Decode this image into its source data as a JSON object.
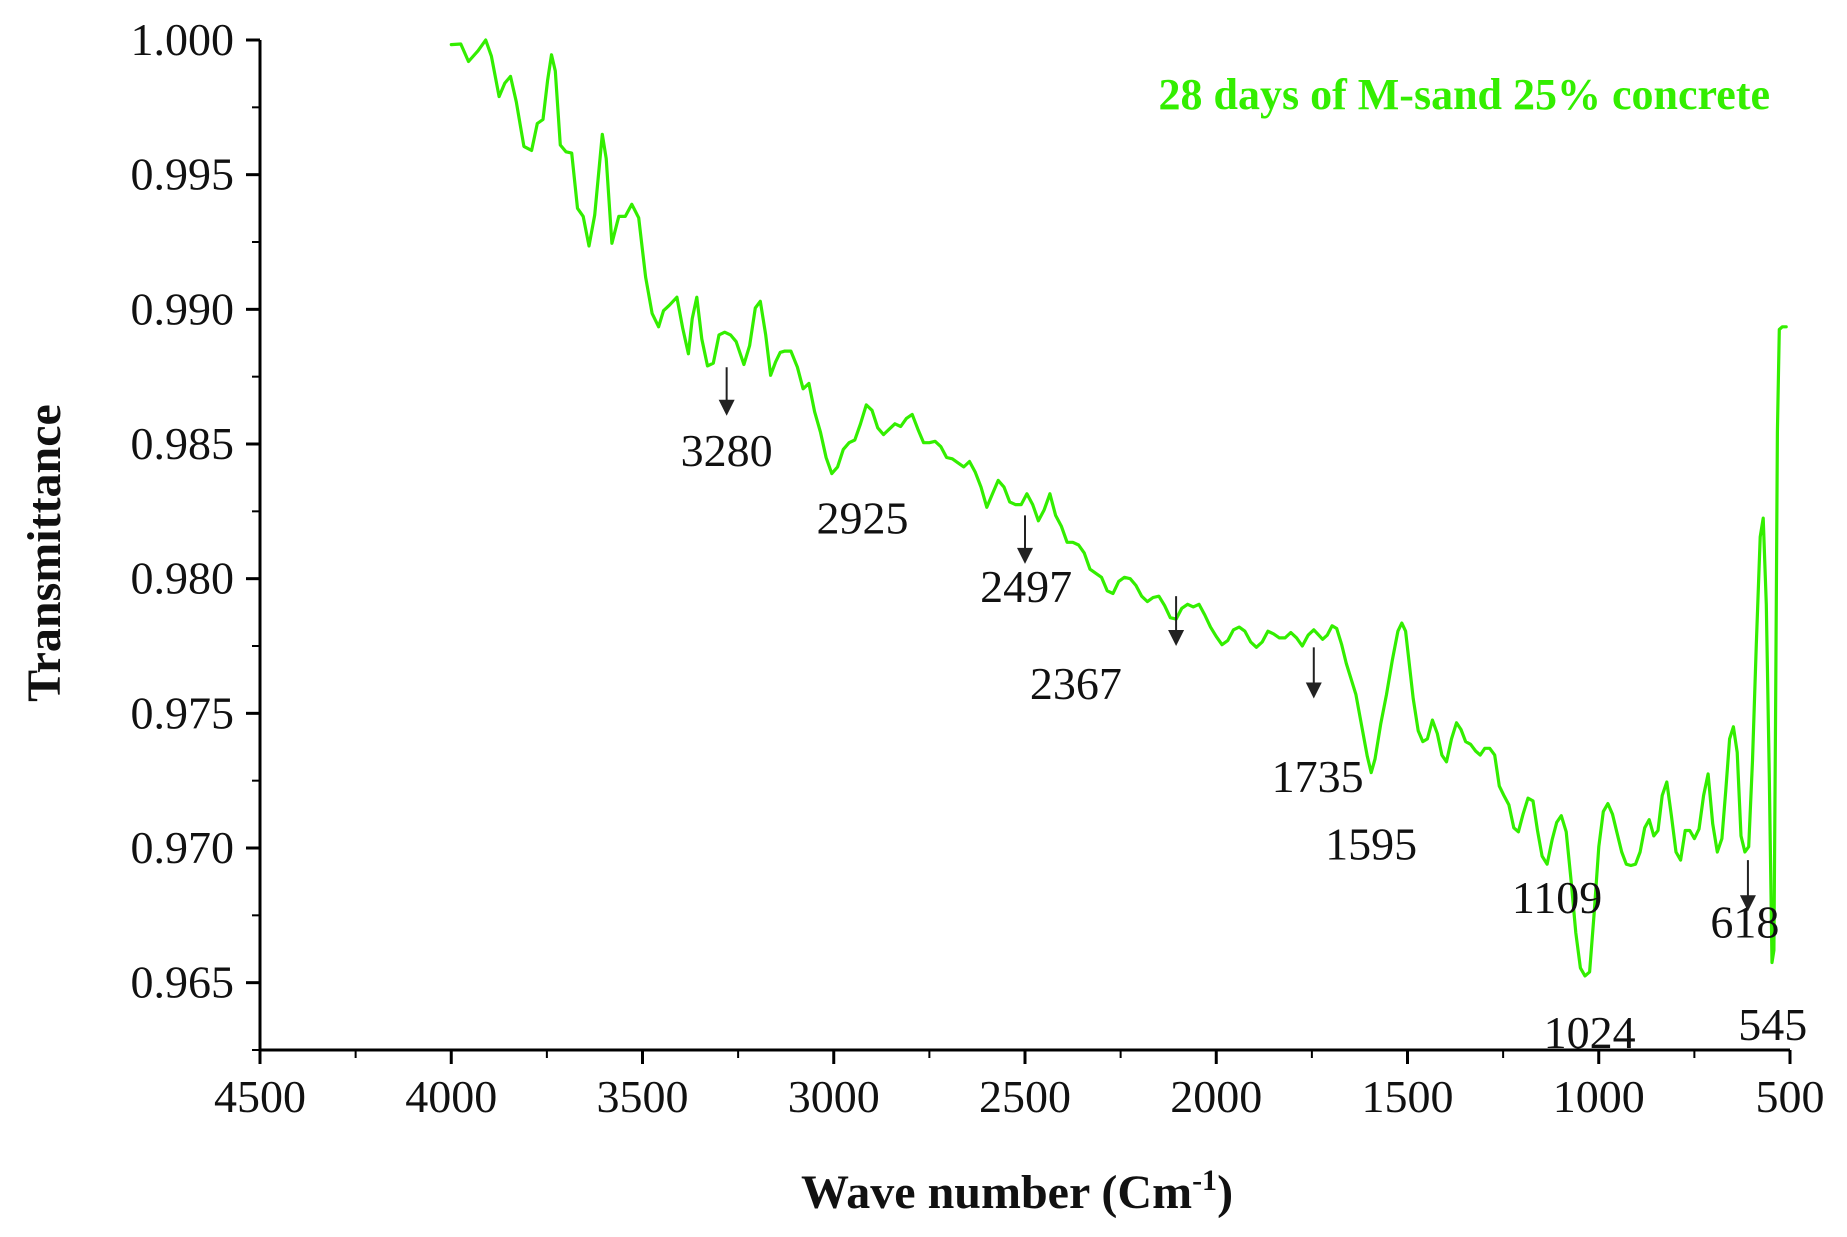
{
  "chart_data": {
    "type": "line",
    "title": "28 days of M-sand 25% concrete",
    "xlabel": "Wave number (Cm",
    "xlabel_superscript": "-1",
    "xlabel_close": ")",
    "ylabel": "Transmittance",
    "xlim": [
      4500,
      500
    ],
    "ylim": [
      0.9625,
      1.0
    ],
    "x_ticks": [
      4500,
      4000,
      3500,
      3000,
      2500,
      2000,
      1500,
      1000,
      500
    ],
    "x_tick_labels": [
      "4500",
      "4000",
      "3500",
      "3000",
      "2500",
      "2000",
      "1500",
      "1000",
      "500"
    ],
    "y_ticks": [
      1.0,
      0.995,
      0.99,
      0.985,
      0.98,
      0.975,
      0.97,
      0.965
    ],
    "y_tick_labels": [
      "1.000",
      "0.995",
      "0.990",
      "0.985",
      "0.980",
      "0.975",
      "0.970",
      "0.965"
    ],
    "line_color": "#33ee00",
    "series": [
      {
        "name": "28 days of M-sand 25% concrete",
        "points": [
          [
            4000,
            0.99983
          ],
          [
            3975,
            0.99985
          ],
          [
            3955,
            0.9992
          ],
          [
            3930,
            0.9996
          ],
          [
            3910,
            1.0
          ],
          [
            3895,
            0.9994
          ],
          [
            3875,
            0.9979
          ],
          [
            3860,
            0.9984
          ],
          [
            3845,
            0.99865
          ],
          [
            3830,
            0.9977
          ],
          [
            3810,
            0.99605
          ],
          [
            3790,
            0.9959
          ],
          [
            3775,
            0.9969
          ],
          [
            3760,
            0.99705
          ],
          [
            3748,
            0.9985
          ],
          [
            3738,
            0.99945
          ],
          [
            3728,
            0.99885
          ],
          [
            3715,
            0.9961
          ],
          [
            3700,
            0.99585
          ],
          [
            3685,
            0.9958
          ],
          [
            3670,
            0.99375
          ],
          [
            3655,
            0.99345
          ],
          [
            3640,
            0.99235
          ],
          [
            3625,
            0.9935
          ],
          [
            3605,
            0.9965
          ],
          [
            3595,
            0.9956
          ],
          [
            3580,
            0.99245
          ],
          [
            3562,
            0.99345
          ],
          [
            3545,
            0.99345
          ],
          [
            3528,
            0.9939
          ],
          [
            3510,
            0.9934
          ],
          [
            3492,
            0.9912
          ],
          [
            3475,
            0.98985
          ],
          [
            3458,
            0.98935
          ],
          [
            3445,
            0.98995
          ],
          [
            3430,
            0.99015
          ],
          [
            3410,
            0.99045
          ],
          [
            3395,
            0.9893
          ],
          [
            3380,
            0.98835
          ],
          [
            3370,
            0.98965
          ],
          [
            3358,
            0.99045
          ],
          [
            3345,
            0.9889
          ],
          [
            3330,
            0.9879
          ],
          [
            3315,
            0.988
          ],
          [
            3300,
            0.98905
          ],
          [
            3285,
            0.98915
          ],
          [
            3270,
            0.98905
          ],
          [
            3255,
            0.9888
          ],
          [
            3235,
            0.98795
          ],
          [
            3220,
            0.98865
          ],
          [
            3205,
            0.99005
          ],
          [
            3192,
            0.9903
          ],
          [
            3178,
            0.98905
          ],
          [
            3165,
            0.98755
          ],
          [
            3152,
            0.98805
          ],
          [
            3140,
            0.9884
          ],
          [
            3128,
            0.98845
          ],
          [
            3112,
            0.98845
          ],
          [
            3095,
            0.98785
          ],
          [
            3080,
            0.98705
          ],
          [
            3065,
            0.98725
          ],
          [
            3050,
            0.9862
          ],
          [
            3035,
            0.98545
          ],
          [
            3020,
            0.9845
          ],
          [
            3005,
            0.9839
          ],
          [
            2990,
            0.98415
          ],
          [
            2975,
            0.9848
          ],
          [
            2960,
            0.98505
          ],
          [
            2945,
            0.98515
          ],
          [
            2930,
            0.98575
          ],
          [
            2915,
            0.98645
          ],
          [
            2900,
            0.98625
          ],
          [
            2885,
            0.9856
          ],
          [
            2870,
            0.98535
          ],
          [
            2855,
            0.98555
          ],
          [
            2840,
            0.98575
          ],
          [
            2825,
            0.98565
          ],
          [
            2810,
            0.98595
          ],
          [
            2795,
            0.9861
          ],
          [
            2780,
            0.98555
          ],
          [
            2765,
            0.98505
          ],
          [
            2750,
            0.98505
          ],
          [
            2735,
            0.9851
          ],
          [
            2720,
            0.9849
          ],
          [
            2705,
            0.9845
          ],
          [
            2690,
            0.98445
          ],
          [
            2675,
            0.9843
          ],
          [
            2660,
            0.98415
          ],
          [
            2645,
            0.98435
          ],
          [
            2630,
            0.98395
          ],
          [
            2615,
            0.9834
          ],
          [
            2600,
            0.98265
          ],
          [
            2585,
            0.98315
          ],
          [
            2570,
            0.98365
          ],
          [
            2555,
            0.9834
          ],
          [
            2540,
            0.98285
          ],
          [
            2525,
            0.98275
          ],
          [
            2510,
            0.98275
          ],
          [
            2495,
            0.98315
          ],
          [
            2480,
            0.98275
          ],
          [
            2465,
            0.98215
          ],
          [
            2450,
            0.98255
          ],
          [
            2435,
            0.98315
          ],
          [
            2420,
            0.98235
          ],
          [
            2405,
            0.98195
          ],
          [
            2390,
            0.98135
          ],
          [
            2375,
            0.98135
          ],
          [
            2360,
            0.98125
          ],
          [
            2345,
            0.98095
          ],
          [
            2330,
            0.98035
          ],
          [
            2315,
            0.9802
          ],
          [
            2300,
            0.98005
          ],
          [
            2285,
            0.97955
          ],
          [
            2270,
            0.97945
          ],
          [
            2255,
            0.9799
          ],
          [
            2240,
            0.98005
          ],
          [
            2225,
            0.98
          ],
          [
            2210,
            0.97975
          ],
          [
            2195,
            0.97935
          ],
          [
            2180,
            0.97915
          ],
          [
            2165,
            0.9793
          ],
          [
            2150,
            0.97935
          ],
          [
            2135,
            0.979
          ],
          [
            2120,
            0.97855
          ],
          [
            2105,
            0.9785
          ],
          [
            2090,
            0.9789
          ],
          [
            2075,
            0.97905
          ],
          [
            2060,
            0.97895
          ],
          [
            2045,
            0.97905
          ],
          [
            2030,
            0.97865
          ],
          [
            2015,
            0.9782
          ],
          [
            2000,
            0.97785
          ],
          [
            1985,
            0.97755
          ],
          [
            1970,
            0.9777
          ],
          [
            1955,
            0.9781
          ],
          [
            1940,
            0.9782
          ],
          [
            1925,
            0.97805
          ],
          [
            1910,
            0.97765
          ],
          [
            1895,
            0.97745
          ],
          [
            1880,
            0.97765
          ],
          [
            1865,
            0.97805
          ],
          [
            1850,
            0.97795
          ],
          [
            1835,
            0.9778
          ],
          [
            1820,
            0.9778
          ],
          [
            1805,
            0.978
          ],
          [
            1790,
            0.9778
          ],
          [
            1775,
            0.9775
          ],
          [
            1760,
            0.9779
          ],
          [
            1745,
            0.9781
          ],
          [
            1735,
            0.97795
          ],
          [
            1722,
            0.97775
          ],
          [
            1710,
            0.9779
          ],
          [
            1697,
            0.97825
          ],
          [
            1685,
            0.97815
          ],
          [
            1672,
            0.97755
          ],
          [
            1660,
            0.97685
          ],
          [
            1648,
            0.9763
          ],
          [
            1635,
            0.9757
          ],
          [
            1620,
            0.97455
          ],
          [
            1605,
            0.9734
          ],
          [
            1595,
            0.9728
          ],
          [
            1585,
            0.9733
          ],
          [
            1570,
            0.9746
          ],
          [
            1555,
            0.9757
          ],
          [
            1540,
            0.97695
          ],
          [
            1525,
            0.97805
          ],
          [
            1515,
            0.97835
          ],
          [
            1505,
            0.97805
          ],
          [
            1495,
            0.9768
          ],
          [
            1485,
            0.97555
          ],
          [
            1472,
            0.97435
          ],
          [
            1460,
            0.97395
          ],
          [
            1448,
            0.97405
          ],
          [
            1435,
            0.97475
          ],
          [
            1422,
            0.97425
          ],
          [
            1410,
            0.97345
          ],
          [
            1398,
            0.9732
          ],
          [
            1385,
            0.97405
          ],
          [
            1372,
            0.97465
          ],
          [
            1360,
            0.9744
          ],
          [
            1348,
            0.97395
          ],
          [
            1335,
            0.97385
          ],
          [
            1322,
            0.9736
          ],
          [
            1310,
            0.97345
          ],
          [
            1298,
            0.9737
          ],
          [
            1285,
            0.9737
          ],
          [
            1272,
            0.97345
          ],
          [
            1260,
            0.9723
          ],
          [
            1248,
            0.97195
          ],
          [
            1235,
            0.9716
          ],
          [
            1222,
            0.97075
          ],
          [
            1210,
            0.9706
          ],
          [
            1198,
            0.97125
          ],
          [
            1185,
            0.97185
          ],
          [
            1172,
            0.97175
          ],
          [
            1160,
            0.97065
          ],
          [
            1148,
            0.9697
          ],
          [
            1135,
            0.9694
          ],
          [
            1122,
            0.9703
          ],
          [
            1110,
            0.97095
          ],
          [
            1098,
            0.9712
          ],
          [
            1085,
            0.9706
          ],
          [
            1072,
            0.96875
          ],
          [
            1060,
            0.96685
          ],
          [
            1048,
            0.96555
          ],
          [
            1036,
            0.96525
          ],
          [
            1024,
            0.9654
          ],
          [
            1012,
            0.9676
          ],
          [
            1000,
            0.97005
          ],
          [
            988,
            0.97135
          ],
          [
            976,
            0.97165
          ],
          [
            964,
            0.97125
          ],
          [
            952,
            0.97055
          ],
          [
            940,
            0.96985
          ],
          [
            928,
            0.9694
          ],
          [
            916,
            0.96935
          ],
          [
            904,
            0.9694
          ],
          [
            892,
            0.96985
          ],
          [
            880,
            0.97075
          ],
          [
            868,
            0.97105
          ],
          [
            856,
            0.97045
          ],
          [
            845,
            0.97065
          ],
          [
            834,
            0.97195
          ],
          [
            822,
            0.97245
          ],
          [
            810,
            0.9712
          ],
          [
            798,
            0.96985
          ],
          [
            786,
            0.96955
          ],
          [
            774,
            0.97065
          ],
          [
            762,
            0.97065
          ],
          [
            750,
            0.97035
          ],
          [
            738,
            0.9707
          ],
          [
            726,
            0.97195
          ],
          [
            714,
            0.97275
          ],
          [
            702,
            0.9709
          ],
          [
            690,
            0.96985
          ],
          [
            678,
            0.97035
          ],
          [
            668,
            0.9721
          ],
          [
            658,
            0.97405
          ],
          [
            648,
            0.9745
          ],
          [
            638,
            0.97355
          ],
          [
            628,
            0.97045
          ],
          [
            618,
            0.96985
          ],
          [
            608,
            0.97005
          ],
          [
            598,
            0.97325
          ],
          [
            588,
            0.97755
          ],
          [
            578,
            0.98155
          ],
          [
            570,
            0.98225
          ],
          [
            562,
            0.97905
          ],
          [
            554,
            0.97265
          ],
          [
            547,
            0.96575
          ],
          [
            542,
            0.9662
          ],
          [
            538,
            0.97455
          ],
          [
            533,
            0.98545
          ],
          [
            528,
            0.98925
          ],
          [
            520,
            0.98935
          ],
          [
            510,
            0.98935
          ]
        ]
      }
    ],
    "annotations": [
      {
        "text": "3280",
        "x": 3280,
        "y": 0.98418,
        "arrow": true,
        "arrow_x": 3280,
        "arrow_from": 0.98785,
        "arrow_to": 0.98605
      },
      {
        "text": "2925",
        "x": 2925,
        "y": 0.98168,
        "arrow": false
      },
      {
        "text": "2497",
        "x": 2497,
        "y": 0.97913,
        "arrow": true,
        "arrow_x": 2500,
        "arrow_from": 0.98235,
        "arrow_to": 0.98055
      },
      {
        "text": "2367",
        "x": 2367,
        "y": 0.97553,
        "arrow": true,
        "arrow_x": 2105,
        "arrow_from": 0.97935,
        "arrow_to": 0.9775
      },
      {
        "text": "1735",
        "x": 1735,
        "y": 0.97208,
        "arrow": true,
        "arrow_x": 1745,
        "arrow_from": 0.97745,
        "arrow_to": 0.97555
      },
      {
        "text": "1595",
        "x": 1595,
        "y": 0.96958,
        "arrow": false
      },
      {
        "text": "1109",
        "x": 1109,
        "y": 0.96758,
        "arrow": false
      },
      {
        "text": "618",
        "x": 618,
        "y": 0.96668,
        "arrow": true,
        "arrow_x": 610,
        "arrow_from": 0.96955,
        "arrow_to": 0.96765
      },
      {
        "text": "1024",
        "x": 1024,
        "y": 0.96258,
        "arrow": false
      },
      {
        "text": "545",
        "x": 545,
        "y": 0.96288,
        "arrow": false
      }
    ]
  }
}
